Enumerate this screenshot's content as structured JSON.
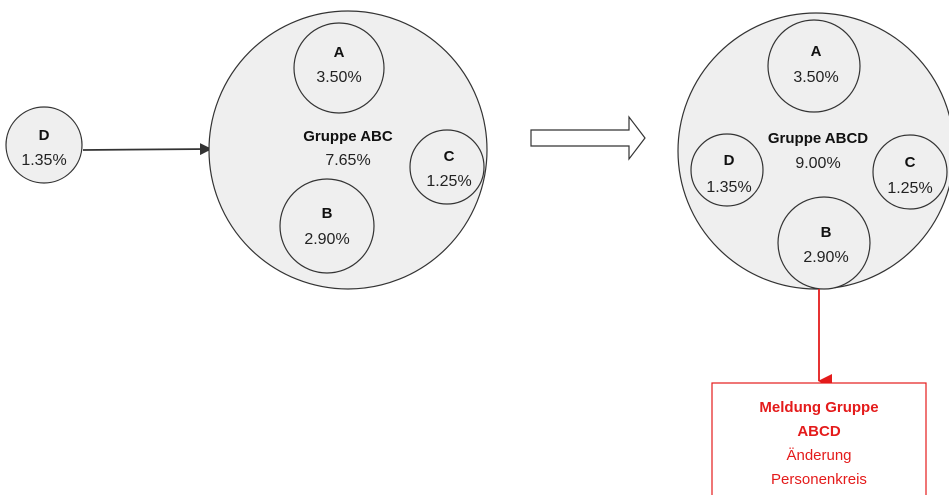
{
  "left": {
    "outside": {
      "label": "D",
      "value": "1.35%"
    },
    "group": {
      "title": "Gruppe ABC",
      "total": "7.65%",
      "members": [
        {
          "label": "A",
          "value": "3.50%"
        },
        {
          "label": "B",
          "value": "2.90%"
        },
        {
          "label": "C",
          "value": "1.25%"
        }
      ]
    }
  },
  "right": {
    "group": {
      "title": "Gruppe ABCD",
      "total": "9.00%",
      "members": [
        {
          "label": "A",
          "value": "3.50%"
        },
        {
          "label": "B",
          "value": "2.90%"
        },
        {
          "label": "C",
          "value": "1.25%"
        },
        {
          "label": "D",
          "value": "1.35%"
        }
      ]
    }
  },
  "notice": {
    "title_line1": "Meldung Gruppe",
    "title_line2": "ABCD",
    "line3": "Änderung",
    "line4": "Personenkreis"
  },
  "colors": {
    "circle_fill": "#efefef",
    "stroke": "#333333",
    "alert": "#e41b1b"
  }
}
